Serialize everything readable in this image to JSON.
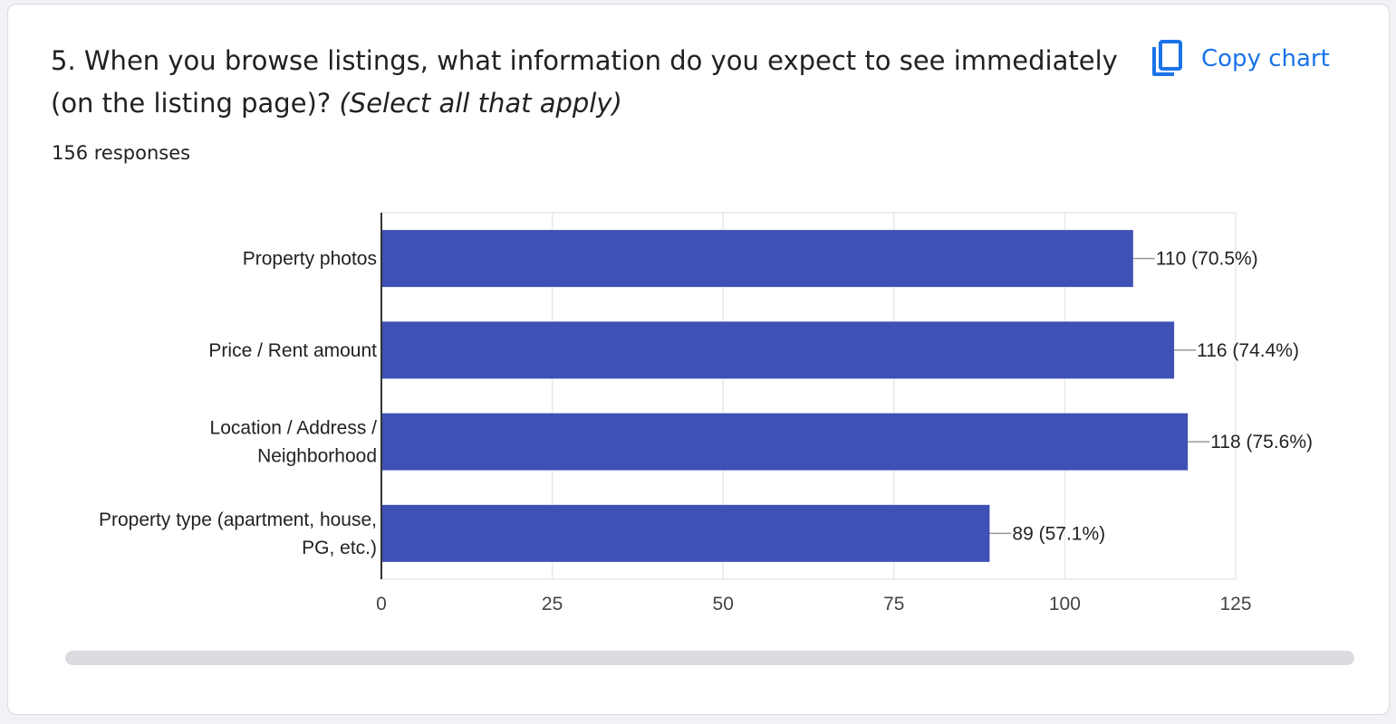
{
  "question": {
    "title": "5. When you browse listings, what information do you expect to see immediately (on the listing page)?",
    "hint": "(Select all that apply)",
    "responses": "156 responses"
  },
  "copy_button": {
    "label": "Copy chart",
    "icon": "copy-icon"
  },
  "colors": {
    "bar": "#3f51b5",
    "grid": "#e8e8e8",
    "axis": "#333333",
    "accent": "#1a73e8"
  },
  "chart_data": {
    "type": "bar",
    "orientation": "horizontal",
    "title": "",
    "xlabel": "",
    "ylabel": "",
    "categories": [
      "Property photos",
      "Price / Rent amount",
      "Location / Address / Neighborhood",
      "Property type (apartment, house, PG, etc.)"
    ],
    "category_lines": [
      [
        "Property photos"
      ],
      [
        "Price / Rent amount"
      ],
      [
        "Location / Address /",
        "Neighborhood"
      ],
      [
        "Property type (apartment, house,",
        "PG, etc.)"
      ]
    ],
    "values": [
      110,
      116,
      118,
      89
    ],
    "data_labels": [
      "110 (70.5%)",
      "116 (74.4%)",
      "118 (75.6%)",
      "89 (57.1%)"
    ],
    "xlim": [
      0,
      125
    ],
    "xticks": [
      0,
      25,
      50,
      75,
      100,
      125
    ],
    "grid": true,
    "legend": "none"
  }
}
